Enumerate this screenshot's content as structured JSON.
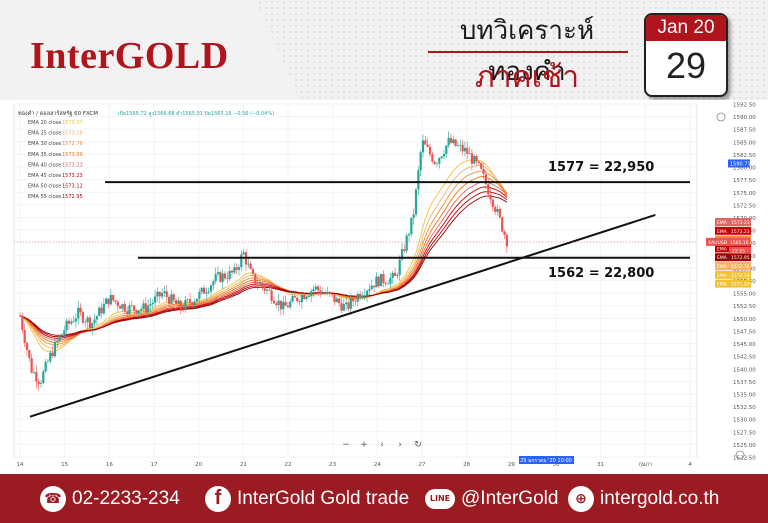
{
  "header": {
    "logo": "InterGOLD",
    "title": "บทวิเคราะห์ทองคำ",
    "session": "ภาคเช้า",
    "cal_month": "Jan 20",
    "cal_day": "29"
  },
  "colors": {
    "brand_red": "#b0141c",
    "footer_red": "#9b1b22",
    "up": "#26a69a",
    "down": "#ef5350"
  },
  "chart_data": {
    "type": "candlestick",
    "symbol_line": "ทองคำ / ดอลลาร์สหรัฐ  60  FXCM",
    "ohlc_text": "เปิด1565.72  สูง1566.68  ต่ำ1565.01  ปิด1565.16  −0.56 (−0.04%)",
    "ema_legend": [
      {
        "label": "EMA 20 close",
        "value": "1573.37",
        "color": "#f1c232"
      },
      {
        "label": "EMA 25 close",
        "value": "1573.18",
        "color": "#f6b26b"
      },
      {
        "label": "EMA 30 close",
        "value": "1572.76",
        "color": "#e69138"
      },
      {
        "label": "EMA 35 close",
        "value": "1573.09",
        "color": "#ff6d01"
      },
      {
        "label": "EMA 40 close",
        "value": "1573.23",
        "color": "#e06666"
      },
      {
        "label": "EMA 45 close",
        "value": "1573.23",
        "color": "#cc0000"
      },
      {
        "label": "EMA 50 close",
        "value": "1573.12",
        "color": "#c00000"
      },
      {
        "label": "EMA 55 close",
        "value": "1572.95",
        "color": "#990000"
      }
    ],
    "y_ticks": [
      "1592.50",
      "1590.00",
      "1587.50",
      "1585.00",
      "1582.50",
      "1580.00",
      "1577.50",
      "1575.00",
      "1572.50",
      "1570.00",
      "1567.50",
      "1565.00",
      "1562.50",
      "1560.00",
      "1557.50",
      "1555.00",
      "1552.50",
      "1550.00",
      "1547.50",
      "1545.00",
      "1542.50",
      "1540.00",
      "1537.50",
      "1535.00",
      "1532.50",
      "1530.00",
      "1527.50",
      "1525.00",
      "1522.50"
    ],
    "ylim": [
      1522.5,
      1592.5
    ],
    "x_ticks": [
      "14",
      "15",
      "16",
      "17",
      "20",
      "21",
      "22",
      "23",
      "24",
      "27",
      "28",
      "29",
      "30",
      "31",
      "กุมภา",
      "4"
    ],
    "x_cursor_label": "29 มกราคม '20  10:00",
    "price_badges": [
      {
        "label": "EMA",
        "value": "1573.23"
      },
      {
        "label": "EMA",
        "value": "1573.23"
      },
      {
        "label": "EMA",
        "value": "1573.12"
      },
      {
        "label": "EMA",
        "value": "1571.89"
      },
      {
        "label": "EMA",
        "value": "1572.95"
      },
      {
        "label": "EMA",
        "value": "1572.76"
      },
      {
        "label": "EMA",
        "value": "1572.18"
      },
      {
        "label": "EMA",
        "value": "1571.29"
      }
    ],
    "xauusd_label": "XAUUSD",
    "xauusd_value": "1565.16",
    "countdown": "22:25",
    "resistance_price": "1580.71",
    "annotations": [
      {
        "text": "1577 =  22,950",
        "price": 1577
      },
      {
        "text": "1562 =  22,800",
        "price": 1562
      }
    ],
    "trendline": {
      "from": {
        "x": "14",
        "y": 1530.5
      },
      "to": {
        "x": "กุมภา",
        "y": 1570.5
      }
    },
    "hline_levels": [
      1577,
      1562
    ],
    "toolbar_icons": [
      "minus-icon",
      "plus-icon",
      "back-icon",
      "forward-icon",
      "reset-icon"
    ]
  },
  "footer": {
    "phone": "02-2233-234",
    "facebook": "InterGold Gold trade",
    "line": "@InterGold",
    "line_icon_text": "LINE",
    "web": "intergold.co.th"
  }
}
